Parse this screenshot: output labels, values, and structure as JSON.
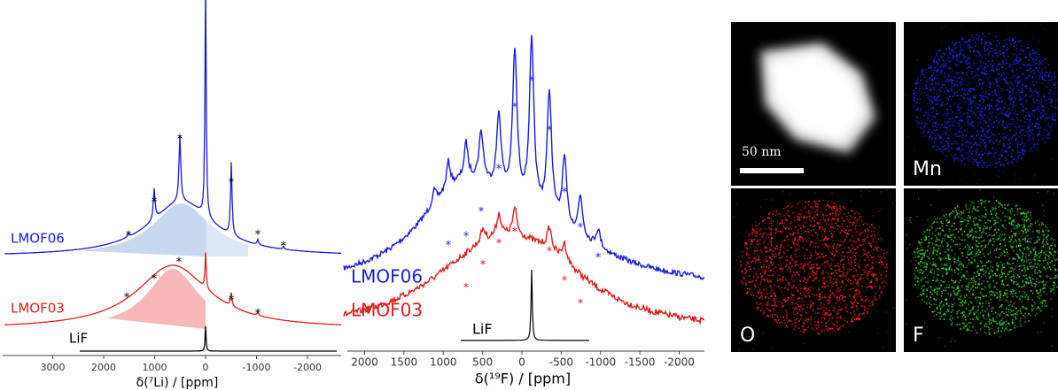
{
  "panel_a": {
    "x_label": "δ(⁷Li) / [ppm]",
    "xticks": [
      3000,
      2000,
      1000,
      0,
      -1000,
      -2000
    ],
    "traces": [
      "LMOF06",
      "LMOF03",
      "LiF"
    ],
    "marker": "*"
  },
  "panel_b": {
    "x_label": "δ(¹⁹F) / [ppm]",
    "xticks": [
      2000,
      1500,
      1000,
      500,
      0,
      -500,
      -1000,
      -1500,
      -2000
    ],
    "traces": [
      "LMOF06",
      "LMOF03",
      "LiF"
    ],
    "marker": "*"
  },
  "panel_c": {
    "scale_bar": "50 nm",
    "maps": [
      "Mn",
      "O",
      "F"
    ]
  }
}
